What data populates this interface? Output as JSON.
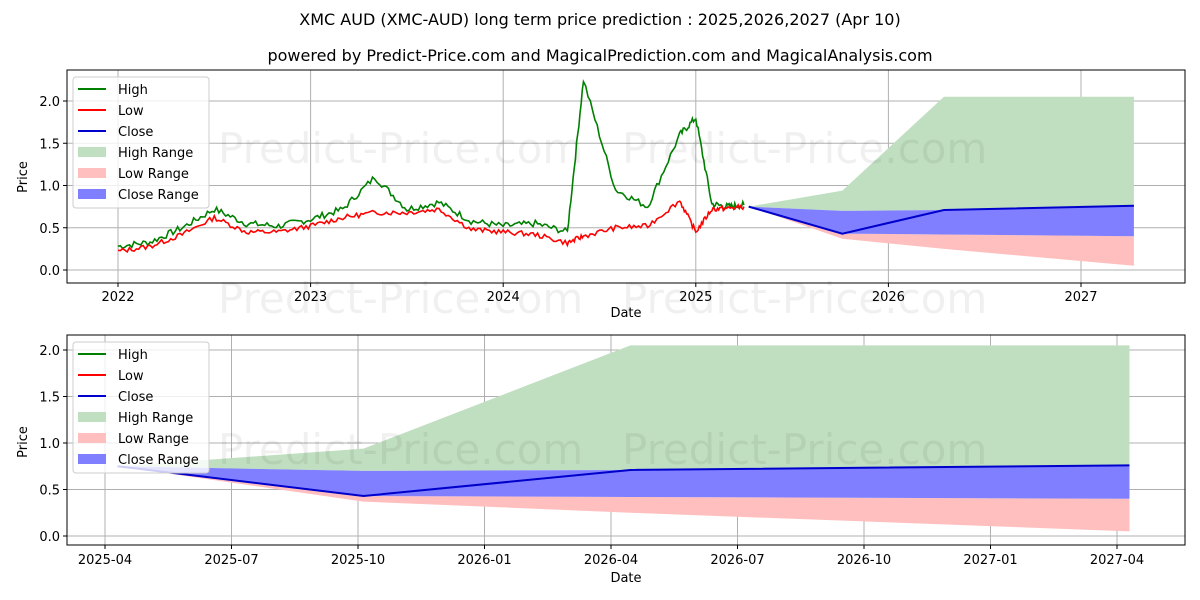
{
  "header": {
    "title": "XMC AUD (XMC-AUD) long term price prediction : 2025,2026,2027 (Apr 10)",
    "subtitle": "powered by Predict-Price.com and MagicalPrediction.com and MagicalAnalysis.com"
  },
  "watermark": "Predict-Price.com",
  "colors": {
    "high": "#008000",
    "low": "#ff0000",
    "close": "#0000cc",
    "high_range": "#c0dfc0",
    "low_range": "#ffbfbf",
    "close_range": "#7f7fff"
  },
  "legend": [
    "High",
    "Low",
    "Close",
    "High Range",
    "Low Range",
    "Close Range"
  ],
  "chart_data": [
    {
      "type": "line",
      "title": "XMC AUD (XMC-AUD) long term price prediction : 2025,2026,2027 (Apr 10)",
      "xlabel": "Date",
      "ylabel": "Price",
      "x_ticks": [
        "2022",
        "2023",
        "2024",
        "2025",
        "2026",
        "2027"
      ],
      "y_ticks": [
        "0.0",
        "0.5",
        "1.0",
        "1.5",
        "2.0"
      ],
      "ylim": [
        -0.08,
        2.38
      ],
      "grid": true,
      "legend_position": "upper left",
      "history": {
        "dates": [
          "2022-01",
          "2022-03",
          "2022-05",
          "2022-07",
          "2022-09",
          "2022-11",
          "2023-01",
          "2023-03",
          "2023-05",
          "2023-07",
          "2023-09",
          "2023-11",
          "2024-01",
          "2024-03",
          "2024-05",
          "2024-06",
          "2024-08",
          "2024-10",
          "2024-12",
          "2025-01",
          "2025-02",
          "2025-03",
          "2025-04"
        ],
        "high": [
          0.28,
          0.33,
          0.5,
          0.72,
          0.55,
          0.52,
          0.6,
          0.72,
          1.1,
          0.72,
          0.8,
          0.58,
          0.52,
          0.55,
          0.45,
          2.25,
          0.95,
          0.75,
          1.6,
          1.8,
          0.78,
          0.75,
          0.77
        ],
        "low": [
          0.22,
          0.28,
          0.42,
          0.62,
          0.45,
          0.45,
          0.52,
          0.62,
          0.68,
          0.68,
          0.72,
          0.48,
          0.45,
          0.42,
          0.32,
          0.4,
          0.5,
          0.52,
          0.82,
          0.45,
          0.72,
          0.73,
          0.75
        ]
      },
      "forecast": {
        "dates": [
          "2025-04-10",
          "2025-10-05",
          "2026-04-15",
          "2027-04-10"
        ],
        "close": [
          0.75,
          0.43,
          0.71,
          0.76
        ],
        "close_range_high": [
          0.75,
          0.7,
          0.71,
          0.76
        ],
        "close_range_low": [
          0.75,
          0.43,
          0.42,
          0.4
        ],
        "high_range": [
          0.75,
          0.94,
          2.05,
          2.05
        ],
        "low_range": [
          0.75,
          0.37,
          0.25,
          0.05
        ]
      }
    },
    {
      "type": "area",
      "xlabel": "Date",
      "ylabel": "Price",
      "x_ticks": [
        "2025-04",
        "2025-07",
        "2025-10",
        "2026-01",
        "2026-04",
        "2026-07",
        "2026-10",
        "2027-01",
        "2027-04"
      ],
      "y_ticks": [
        "0.0",
        "0.5",
        "1.0",
        "1.5",
        "2.0"
      ],
      "ylim": [
        -0.1,
        2.15
      ],
      "grid": true,
      "legend_position": "upper left",
      "forecast": {
        "dates": [
          "2025-04-10",
          "2025-10-05",
          "2026-04-15",
          "2027-04-10"
        ],
        "close": [
          0.75,
          0.43,
          0.71,
          0.76
        ],
        "close_range_high": [
          0.75,
          0.7,
          0.71,
          0.76
        ],
        "close_range_low": [
          0.75,
          0.43,
          0.42,
          0.4
        ],
        "high_range": [
          0.75,
          0.94,
          2.05,
          2.05
        ],
        "low_range": [
          0.75,
          0.37,
          0.25,
          0.05
        ]
      }
    }
  ]
}
